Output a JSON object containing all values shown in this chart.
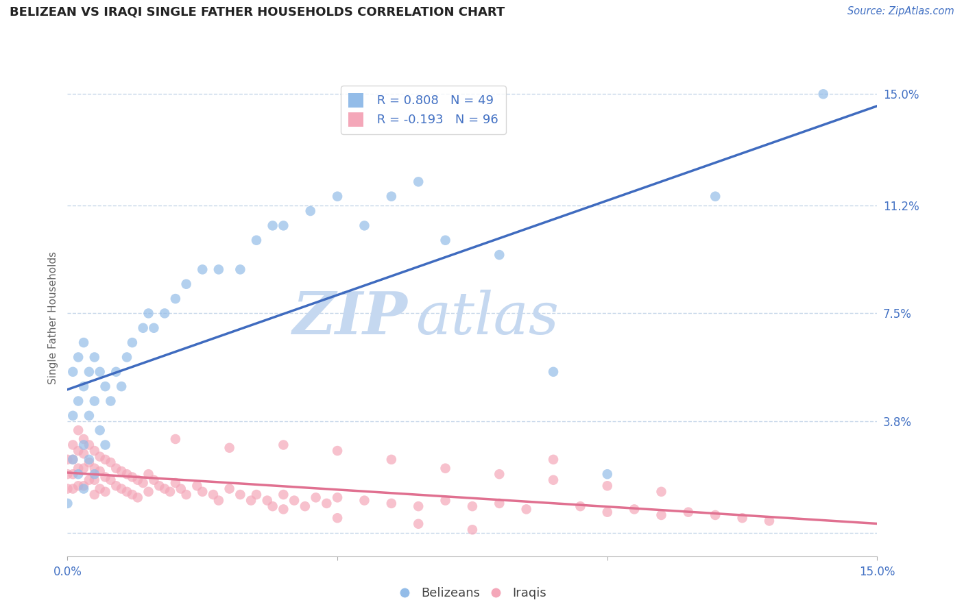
{
  "title": "BELIZEAN VS IRAQI SINGLE FATHER HOUSEHOLDS CORRELATION CHART",
  "source_text": "Source: ZipAtlas.com",
  "ylabel": "Single Father Households",
  "xlim": [
    0.0,
    0.15
  ],
  "ylim": [
    -0.008,
    0.155
  ],
  "yticks": [
    0.0,
    0.038,
    0.075,
    0.112,
    0.15
  ],
  "ytick_labels": [
    "",
    "3.8%",
    "7.5%",
    "11.2%",
    "15.0%"
  ],
  "xticks": [
    0.0,
    0.05,
    0.1,
    0.15
  ],
  "xtick_labels": [
    "0.0%",
    "",
    "",
    "15.0%"
  ],
  "belizean_color": "#93bce8",
  "iraqi_color": "#f4a7b9",
  "belizean_line_color": "#3f6bbf",
  "iraqi_line_color": "#e07090",
  "belizean_R": 0.808,
  "belizean_N": 49,
  "iraqi_R": -0.193,
  "iraqi_N": 96,
  "watermark_zip_color": "#c5d8f0",
  "watermark_atlas_color": "#c5d8f0",
  "legend_label_belizean": "Belizeans",
  "legend_label_iraqi": "Iraqis",
  "belizean_scatter_x": [
    0.0,
    0.001,
    0.001,
    0.001,
    0.002,
    0.002,
    0.002,
    0.003,
    0.003,
    0.003,
    0.003,
    0.004,
    0.004,
    0.004,
    0.005,
    0.005,
    0.005,
    0.006,
    0.006,
    0.007,
    0.007,
    0.008,
    0.009,
    0.01,
    0.011,
    0.012,
    0.014,
    0.015,
    0.016,
    0.018,
    0.02,
    0.022,
    0.025,
    0.028,
    0.032,
    0.035,
    0.038,
    0.04,
    0.045,
    0.05,
    0.055,
    0.06,
    0.065,
    0.07,
    0.08,
    0.09,
    0.1,
    0.12,
    0.14
  ],
  "belizean_scatter_y": [
    0.01,
    0.025,
    0.04,
    0.055,
    0.02,
    0.045,
    0.06,
    0.015,
    0.03,
    0.05,
    0.065,
    0.025,
    0.04,
    0.055,
    0.02,
    0.045,
    0.06,
    0.035,
    0.055,
    0.03,
    0.05,
    0.045,
    0.055,
    0.05,
    0.06,
    0.065,
    0.07,
    0.075,
    0.07,
    0.075,
    0.08,
    0.085,
    0.09,
    0.09,
    0.09,
    0.1,
    0.105,
    0.105,
    0.11,
    0.115,
    0.105,
    0.115,
    0.12,
    0.1,
    0.095,
    0.055,
    0.02,
    0.115,
    0.15
  ],
  "iraqi_scatter_x": [
    0.0,
    0.0,
    0.0,
    0.001,
    0.001,
    0.001,
    0.001,
    0.002,
    0.002,
    0.002,
    0.002,
    0.003,
    0.003,
    0.003,
    0.003,
    0.004,
    0.004,
    0.004,
    0.005,
    0.005,
    0.005,
    0.005,
    0.006,
    0.006,
    0.006,
    0.007,
    0.007,
    0.007,
    0.008,
    0.008,
    0.009,
    0.009,
    0.01,
    0.01,
    0.011,
    0.011,
    0.012,
    0.012,
    0.013,
    0.013,
    0.014,
    0.015,
    0.015,
    0.016,
    0.017,
    0.018,
    0.019,
    0.02,
    0.021,
    0.022,
    0.024,
    0.025,
    0.027,
    0.028,
    0.03,
    0.032,
    0.034,
    0.035,
    0.037,
    0.038,
    0.04,
    0.042,
    0.044,
    0.046,
    0.048,
    0.05,
    0.055,
    0.06,
    0.065,
    0.07,
    0.075,
    0.08,
    0.085,
    0.09,
    0.095,
    0.1,
    0.105,
    0.11,
    0.115,
    0.12,
    0.125,
    0.13,
    0.04,
    0.05,
    0.06,
    0.07,
    0.08,
    0.09,
    0.1,
    0.11,
    0.02,
    0.03,
    0.04,
    0.05,
    0.065,
    0.075
  ],
  "iraqi_scatter_y": [
    0.025,
    0.02,
    0.015,
    0.03,
    0.025,
    0.02,
    0.015,
    0.035,
    0.028,
    0.022,
    0.016,
    0.032,
    0.027,
    0.022,
    0.016,
    0.03,
    0.024,
    0.018,
    0.028,
    0.022,
    0.018,
    0.013,
    0.026,
    0.021,
    0.015,
    0.025,
    0.019,
    0.014,
    0.024,
    0.018,
    0.022,
    0.016,
    0.021,
    0.015,
    0.02,
    0.014,
    0.019,
    0.013,
    0.018,
    0.012,
    0.017,
    0.02,
    0.014,
    0.018,
    0.016,
    0.015,
    0.014,
    0.017,
    0.015,
    0.013,
    0.016,
    0.014,
    0.013,
    0.011,
    0.015,
    0.013,
    0.011,
    0.013,
    0.011,
    0.009,
    0.013,
    0.011,
    0.009,
    0.012,
    0.01,
    0.012,
    0.011,
    0.01,
    0.009,
    0.011,
    0.009,
    0.01,
    0.008,
    0.025,
    0.009,
    0.007,
    0.008,
    0.006,
    0.007,
    0.006,
    0.005,
    0.004,
    0.03,
    0.028,
    0.025,
    0.022,
    0.02,
    0.018,
    0.016,
    0.014,
    0.032,
    0.029,
    0.008,
    0.005,
    0.003,
    0.001
  ]
}
